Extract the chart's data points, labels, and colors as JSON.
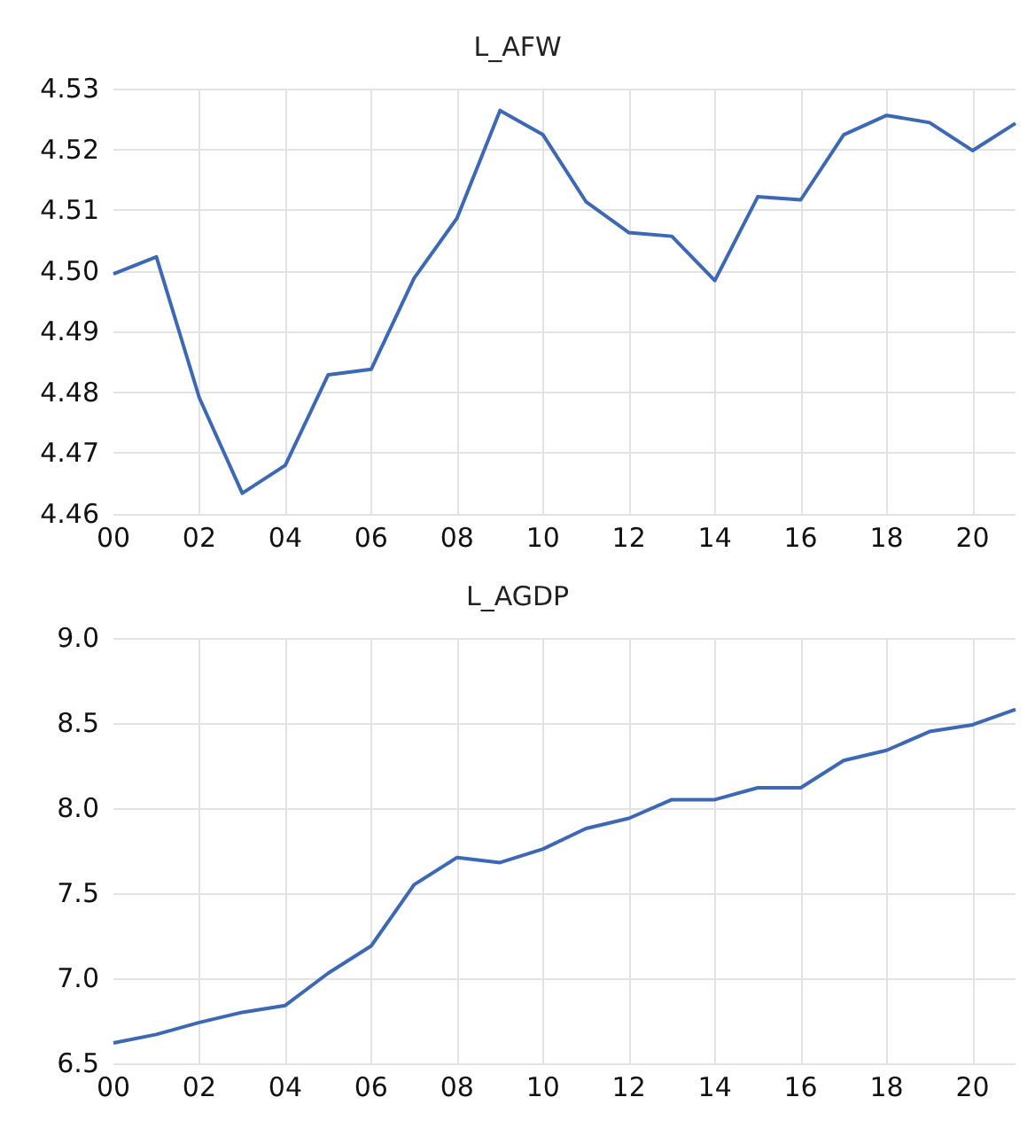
{
  "chart_data": [
    {
      "type": "line",
      "title": "L_AFW",
      "categories": [
        "00",
        null,
        "02",
        null,
        "04",
        null,
        "06",
        null,
        "08",
        null,
        "10",
        null,
        "12",
        null,
        "14",
        null,
        "16",
        null,
        "18",
        null,
        "20",
        null
      ],
      "series": [
        {
          "color": "#3c68b4",
          "values": [
            4.4995,
            4.5023,
            4.4791,
            4.4634,
            4.468,
            4.4829,
            4.4838,
            4.4988,
            4.5087,
            4.5264,
            4.5224,
            4.5114,
            4.5063,
            4.5057,
            4.4984,
            4.5122,
            4.5117,
            4.5224,
            4.5256,
            4.5244,
            4.5198,
            4.5243
          ]
        }
      ],
      "ylim": [
        4.46,
        4.53
      ],
      "yticks": [
        4.46,
        4.47,
        4.48,
        4.49,
        {
          "value": 4.5,
          "label": "4.50"
        },
        4.51,
        4.52,
        4.53
      ],
      "grid": true
    },
    {
      "type": "line",
      "title": "L_AGDP",
      "categories": [
        "00",
        null,
        "02",
        null,
        "04",
        null,
        "06",
        null,
        "08",
        null,
        "10",
        null,
        "12",
        null,
        "14",
        null,
        "16",
        null,
        "18",
        null,
        "20",
        null
      ],
      "series": [
        {
          "color": "#3c68b4",
          "values": [
            6.62,
            6.67,
            6.74,
            6.8,
            6.84,
            7.03,
            7.19,
            7.55,
            7.71,
            7.68,
            7.76,
            7.88,
            7.94,
            8.05,
            8.05,
            8.12,
            8.12,
            8.28,
            8.34,
            8.45,
            8.49,
            8.58
          ]
        }
      ],
      "ylim": [
        6.5,
        9.0
      ],
      "yticks": [
        6.5,
        {
          "value": 7,
          "label": "7.0"
        },
        7.5,
        {
          "value": 8,
          "label": "8.0"
        },
        8.5,
        {
          "value": 9,
          "label": "9.0"
        }
      ],
      "grid": true
    }
  ]
}
